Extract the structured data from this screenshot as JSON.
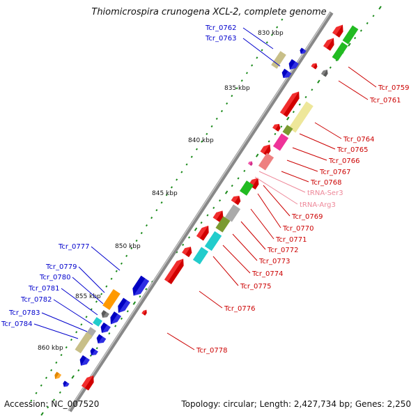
{
  "title": "Thiomicrospira crunogena XCL-2, complete genome",
  "footer": {
    "accession": "Accession: NC_007520",
    "summary": "Topology: circular; Length: 2,427,734 bp; Genes: 2,250"
  },
  "ruler": [
    "830 kbp",
    "835 kbp",
    "840 kbp",
    "845 kbp",
    "850 kbp",
    "855 kbp",
    "860 kbp"
  ],
  "left_labels": [
    "Tcr_0762",
    "Tcr_0763",
    "Tcr_0777",
    "Tcr_0779",
    "Tcr_0780",
    "Tcr_0781",
    "Tcr_0782",
    "Tcr_0783",
    "Tcr_0784"
  ],
  "right_labels": [
    "Tcr_0759",
    "Tcr_0761",
    "Tcr_0764",
    "Tcr_0765",
    "Tcr_0766",
    "Tcr_0767",
    "Tcr_0768",
    "tRNA-Ser3",
    "tRNA-Arg3",
    "Tcr_0769",
    "Tcr_0770",
    "Tcr_0771",
    "Tcr_0772",
    "Tcr_0773",
    "Tcr_0774",
    "Tcr_0775",
    "Tcr_0776",
    "Tcr_0778"
  ],
  "colors": {
    "forward_label": "#0000cc",
    "reverse_label": "#cc0000",
    "trna_label": "#ee8899",
    "backbone": "#888888",
    "gene_red": "#ee0000",
    "gene_blue": "#0000dd",
    "gene_green": "#22bb22",
    "gene_khaki": "#c8bf88",
    "gene_yellow": "#eee79a",
    "gene_olive": "#7a9a30",
    "gene_pink": "#ee3399",
    "gene_salmon": "#ee8080",
    "gene_cyan": "#22cccc",
    "gene_gray": "#aaaaaa",
    "gene_orange": "#ff9900"
  }
}
